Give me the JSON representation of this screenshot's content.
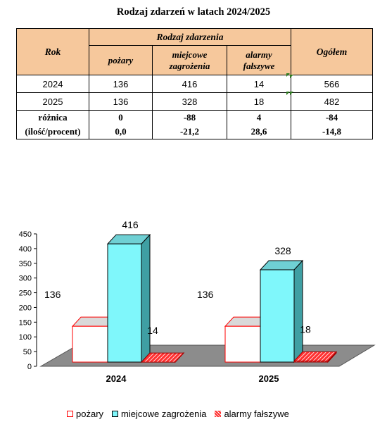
{
  "title": "Rodzaj zdarzeń w latach 2024/2025",
  "table": {
    "rok_header": "Rok",
    "group_header": "Rodzaj zdarzenia",
    "col_pozary": "pożary",
    "col_miejscowe": "miejcowe zagrożenia",
    "col_alarmy": "alarmy fałszywe",
    "col_ogolem": "Ogółem",
    "rows": [
      {
        "rok": "2024",
        "pozary": "136",
        "miejscowe": "416",
        "alarmy": "14",
        "ogolem": "566"
      },
      {
        "rok": "2025",
        "pozary": "136",
        "miejscowe": "328",
        "alarmy": "18",
        "ogolem": "482"
      }
    ],
    "diff_label_1": "różnica",
    "diff_label_2": "(ilość/procent)",
    "diff_count": {
      "pozary": "0",
      "miejscowe": "-88",
      "alarmy": "4",
      "ogolem": "-84"
    },
    "diff_percent": {
      "pozary": "0,0",
      "miejscowe": "-21,2",
      "alarmy": "28,6",
      "ogolem": "-14,8"
    }
  },
  "chart_data": {
    "type": "bar",
    "categories": [
      "2024",
      "2025"
    ],
    "series": [
      {
        "name": "pożary",
        "values": [
          136,
          136
        ]
      },
      {
        "name": "miejcowe zagrożenia",
        "values": [
          416,
          328
        ]
      },
      {
        "name": "alarmy fałszywe",
        "values": [
          14,
          18
        ]
      }
    ],
    "ylim": [
      0,
      450
    ],
    "yticks": [
      0,
      50,
      100,
      150,
      200,
      250,
      300,
      350,
      400,
      450
    ],
    "legend_position": "bottom",
    "colors": {
      "pozary_front": "#ffffff",
      "pozary_edge": "#ff0000",
      "pozary_top": "#d9d9d9",
      "pozary_side": "#d9d9d9",
      "miejscowe_front": "#7ff7fb",
      "miejscowe_top": "#6fd0d4",
      "miejscowe_side": "#3f9fa3",
      "alarmy_front": "#ff3030",
      "alarmy_stripe": "#ffffff",
      "floor": "#8c8c8c"
    }
  }
}
